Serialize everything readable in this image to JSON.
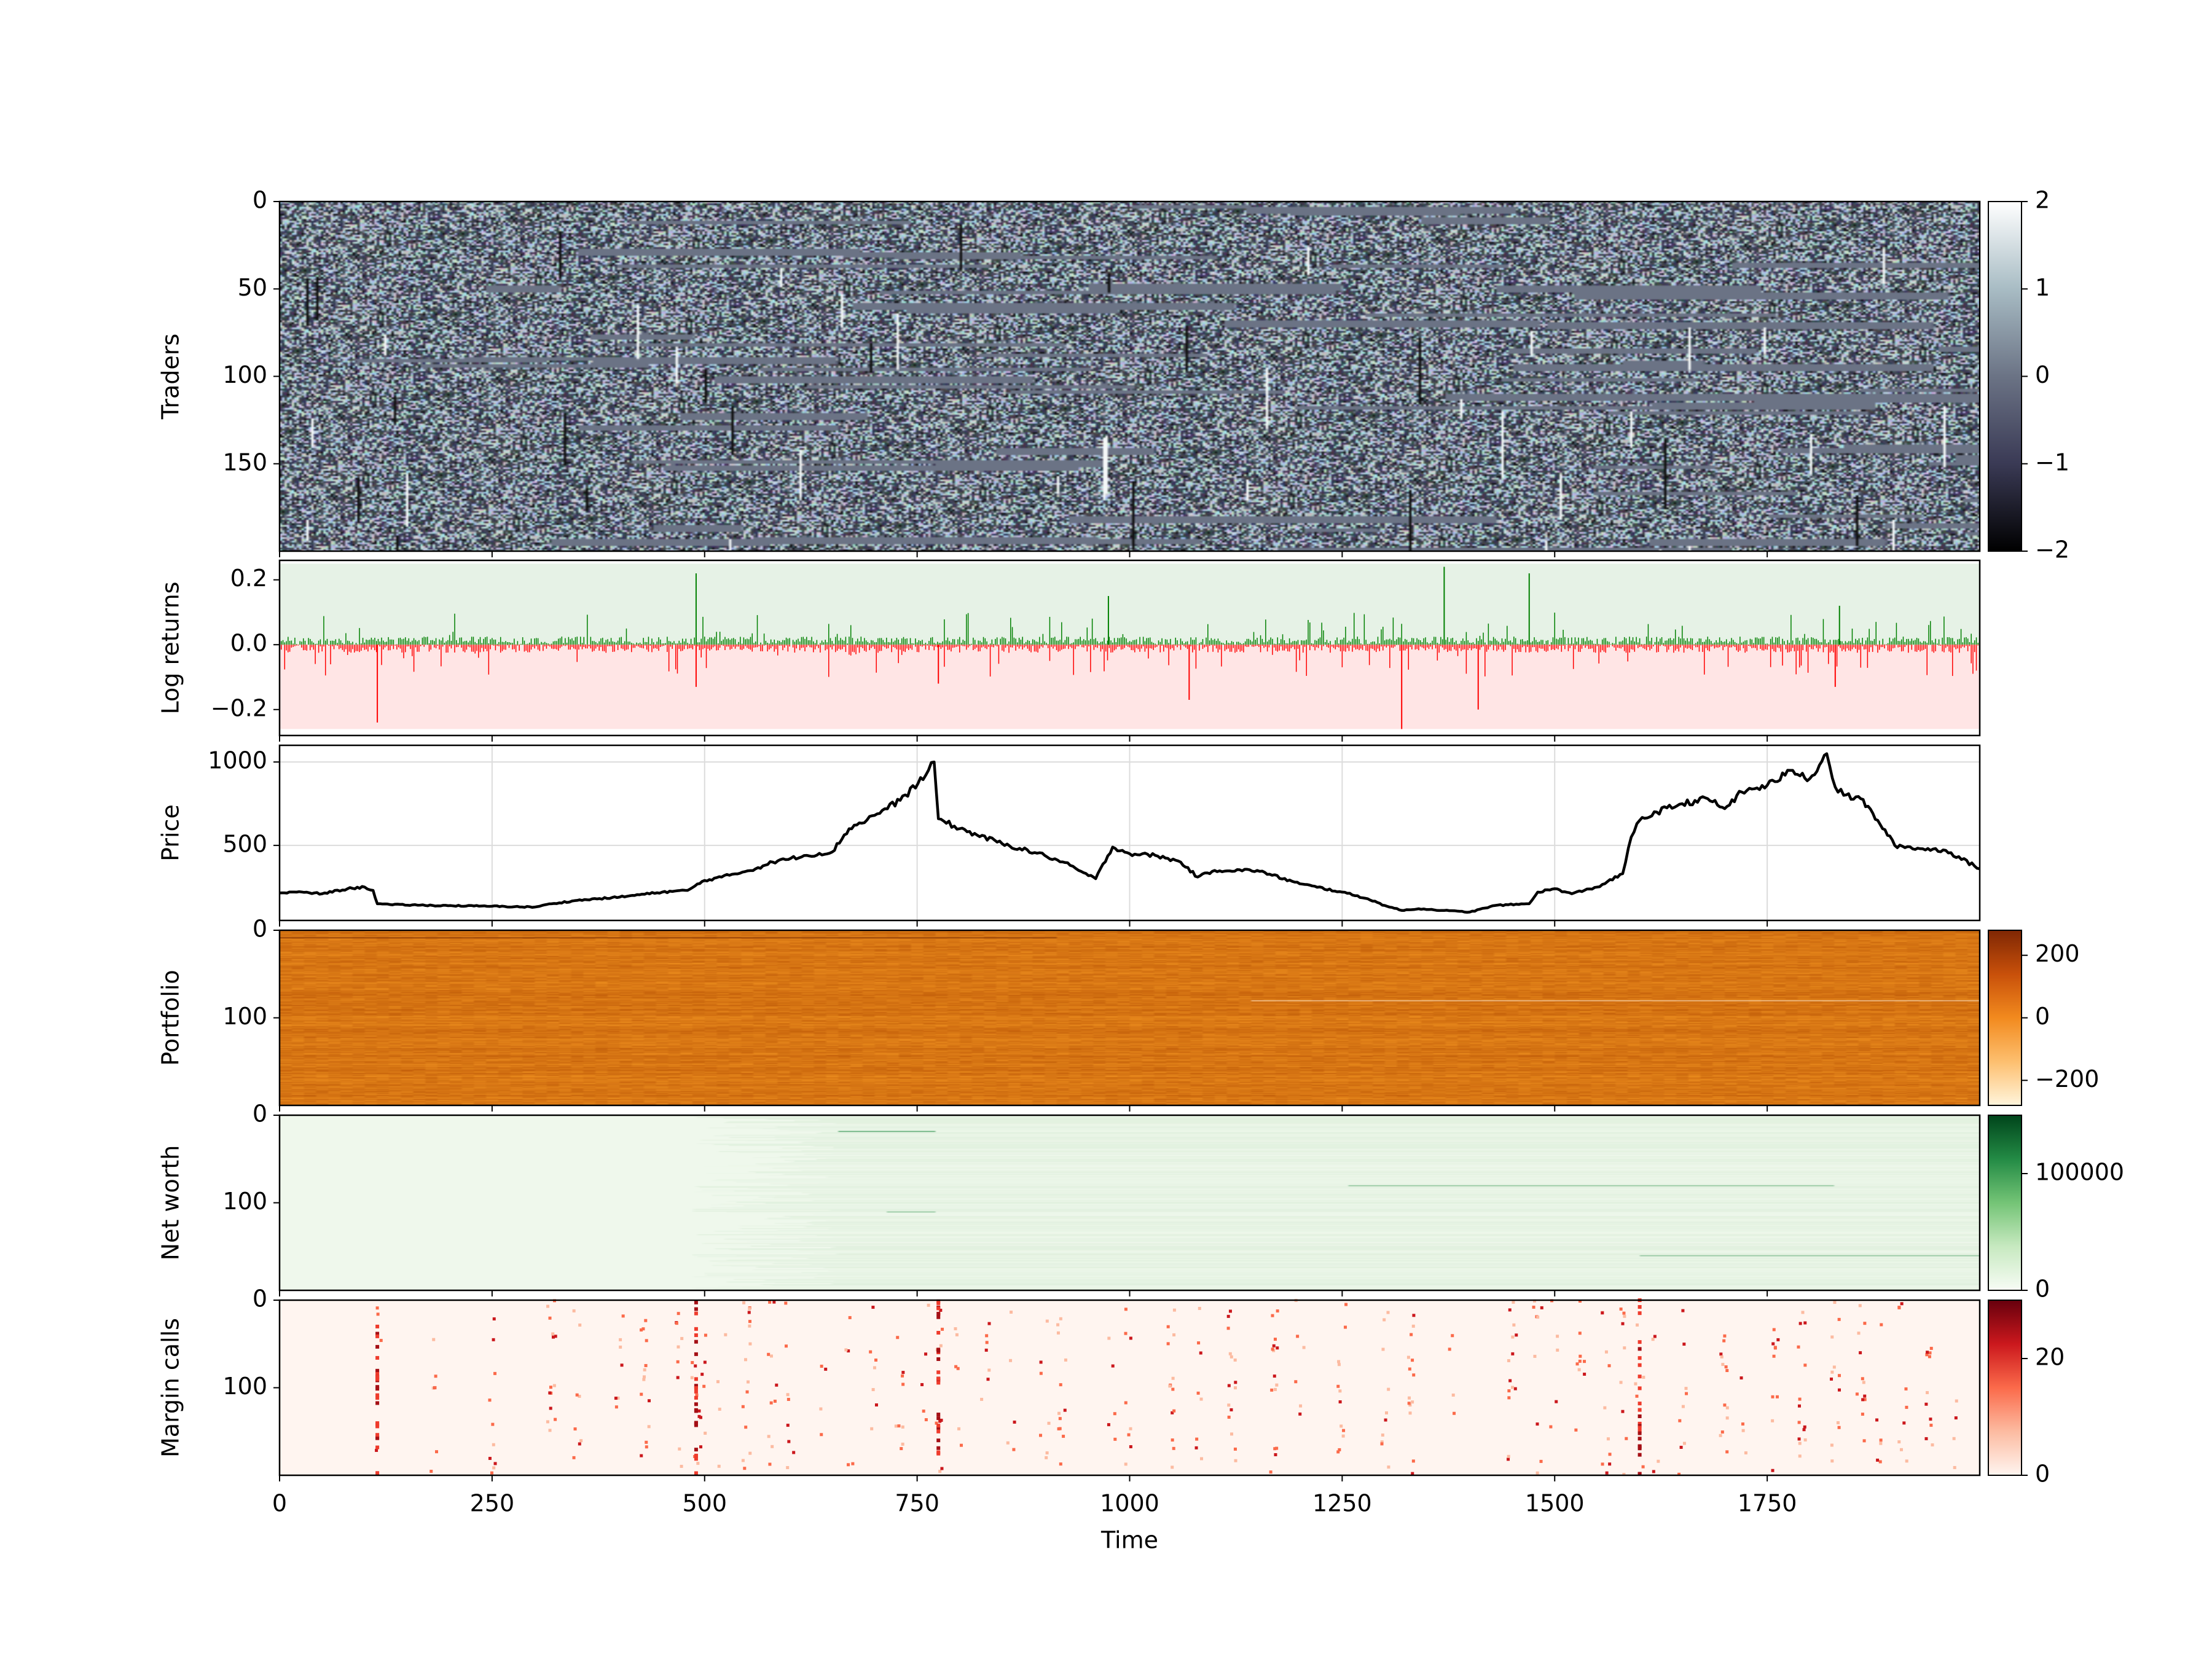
{
  "chart_data": [
    {
      "type": "heatmap",
      "ylabel": "Traders",
      "ylim": [
        0,
        200
      ],
      "y_ticks": [
        "0",
        "50",
        "100",
        "150"
      ],
      "colorbar": {
        "colors": [
          "#000000",
          "#3a3a55",
          "#6b7385",
          "#a8bcc4",
          "#ffffff"
        ],
        "range": [
          -2,
          2
        ],
        "ticks": [
          "2",
          "1",
          "0",
          "−1",
          "−2"
        ]
      }
    },
    {
      "type": "bar",
      "ylabel": "Log returns",
      "ylim": [
        -0.28,
        0.26
      ],
      "y_ticks": [
        "0.2",
        "0.0",
        "−0.2"
      ],
      "positive_color": "#008000",
      "negative_color": "#ff0000",
      "extremes": [
        {
          "t": 115,
          "v": -0.24
        },
        {
          "t": 490,
          "v": 0.22
        },
        {
          "t": 490,
          "v": -0.13
        },
        {
          "t": 775,
          "v": -0.12
        },
        {
          "t": 1070,
          "v": -0.17
        },
        {
          "t": 1320,
          "v": -0.26
        },
        {
          "t": 1370,
          "v": 0.24
        },
        {
          "t": 1410,
          "v": -0.2
        },
        {
          "t": 1470,
          "v": 0.22
        },
        {
          "t": 1830,
          "v": -0.13
        },
        {
          "t": 1835,
          "v": 0.12
        },
        {
          "t": 975,
          "v": 0.15
        }
      ]
    },
    {
      "type": "line",
      "ylabel": "Price",
      "ylim": [
        50,
        1100
      ],
      "y_ticks": [
        "1000",
        "500"
      ],
      "grid": true,
      "x": [
        0,
        20,
        50,
        80,
        100,
        110,
        115,
        130,
        180,
        250,
        300,
        320,
        350,
        400,
        450,
        480,
        500,
        520,
        560,
        580,
        620,
        650,
        670,
        700,
        730,
        760,
        770,
        775,
        800,
        850,
        900,
        930,
        940,
        960,
        980,
        1000,
        1030,
        1060,
        1080,
        1100,
        1150,
        1200,
        1250,
        1280,
        1300,
        1320,
        1340,
        1370,
        1400,
        1430,
        1470,
        1480,
        1500,
        1520,
        1550,
        1580,
        1590,
        1600,
        1620,
        1650,
        1680,
        1700,
        1720,
        1750,
        1780,
        1800,
        1820,
        1830,
        1840,
        1860,
        1880,
        1900,
        1930,
        1960,
        2000
      ],
      "y": [
        215,
        220,
        210,
        240,
        250,
        230,
        150,
        145,
        140,
        135,
        130,
        150,
        170,
        190,
        220,
        230,
        290,
        310,
        360,
        400,
        440,
        460,
        600,
        680,
        770,
        920,
        1000,
        660,
        600,
        510,
        440,
        380,
        350,
        300,
        490,
        450,
        440,
        400,
        310,
        350,
        350,
        270,
        220,
        180,
        140,
        110,
        120,
        110,
        100,
        140,
        150,
        220,
        240,
        210,
        250,
        330,
        550,
        650,
        700,
        750,
        780,
        720,
        820,
        860,
        950,
        900,
        1050,
        850,
        800,
        780,
        650,
        500,
        480,
        470,
        360
      ]
    },
    {
      "type": "heatmap",
      "ylabel": "Portfolio",
      "ylim": [
        0,
        200
      ],
      "y_ticks": [
        "0",
        "100"
      ],
      "colorbar": {
        "colors": [
          "#fff5dc",
          "#fdbf6f",
          "#f28a1e",
          "#c8500a",
          "#7f2704"
        ],
        "range": [
          -280,
          280
        ],
        "ticks": [
          "200",
          "0",
          "−200"
        ]
      }
    },
    {
      "type": "heatmap",
      "ylabel": "Net worth",
      "ylim": [
        0,
        200
      ],
      "y_ticks": [
        "0",
        "100"
      ],
      "colorbar": {
        "colors": [
          "#f7fcf5",
          "#c7e9c0",
          "#74c476",
          "#238b45",
          "#00441b"
        ],
        "range": [
          0,
          150000
        ],
        "ticks": [
          "100000",
          "0"
        ]
      }
    },
    {
      "type": "heatmap",
      "ylabel": "Margin calls",
      "ylim": [
        0,
        200
      ],
      "y_ticks": [
        "0",
        "100"
      ],
      "xlabel": "Time",
      "x_ticks": [
        "0",
        "250",
        "500",
        "750",
        "1000",
        "1250",
        "1500",
        "1750"
      ],
      "xlim": [
        0,
        2000
      ],
      "colorbar": {
        "colors": [
          "#fff5f0",
          "#fcbba1",
          "#fb6a4a",
          "#cb181d",
          "#67000d"
        ],
        "range": [
          0,
          30
        ],
        "ticks": [
          "20",
          "0"
        ]
      },
      "event_times": [
        115,
        180,
        250,
        320,
        350,
        400,
        430,
        470,
        490,
        500,
        520,
        550,
        580,
        600,
        640,
        670,
        700,
        730,
        760,
        775,
        800,
        830,
        860,
        900,
        920,
        980,
        1000,
        1050,
        1080,
        1120,
        1170,
        1200,
        1250,
        1300,
        1330,
        1380,
        1450,
        1480,
        1500,
        1530,
        1560,
        1580,
        1600,
        1620,
        1650,
        1700,
        1720,
        1760,
        1790,
        1830,
        1860,
        1880,
        1910,
        1940,
        1970
      ]
    }
  ]
}
